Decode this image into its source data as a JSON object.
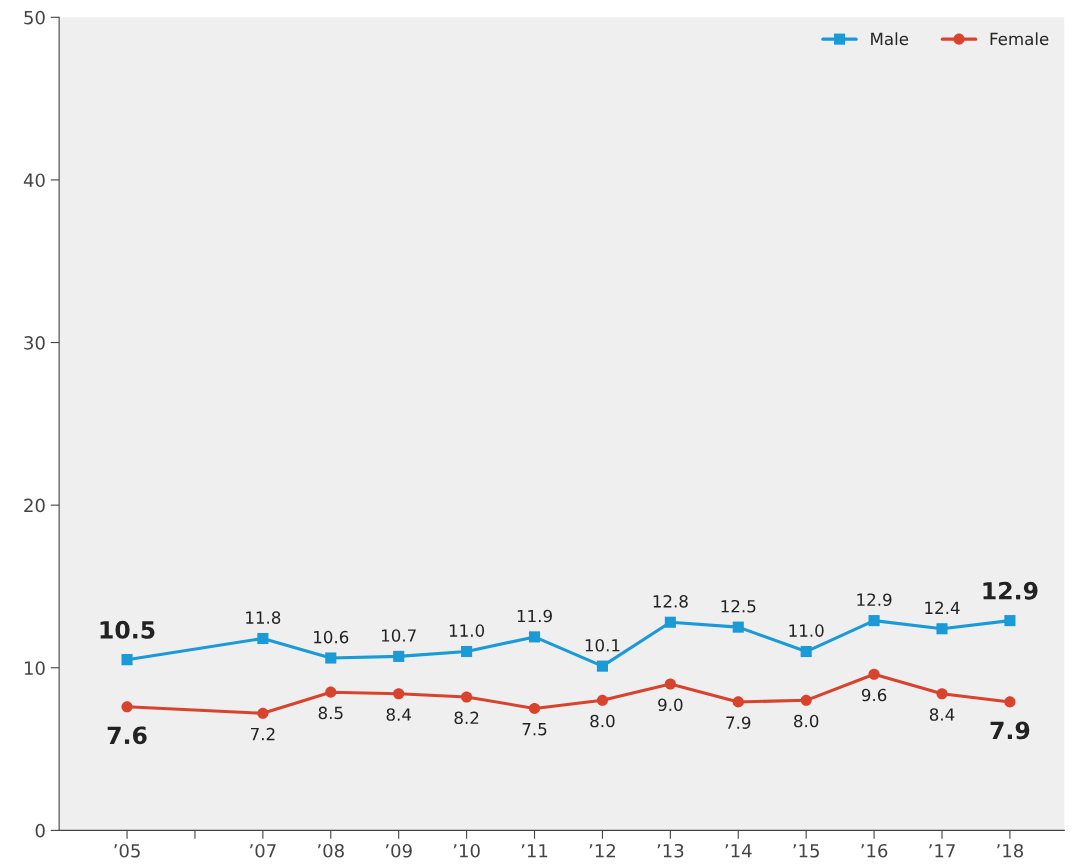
{
  "chart_data": {
    "type": "line",
    "x": [
      2005,
      2007,
      2008,
      2009,
      2010,
      2011,
      2012,
      2013,
      2014,
      2015,
      2016,
      2017,
      2018
    ],
    "series": [
      {
        "name": "Male",
        "color": "#1a9ad6",
        "marker": "square",
        "values": [
          10.5,
          11.8,
          10.6,
          10.7,
          11.0,
          11.9,
          10.1,
          12.8,
          12.5,
          11.0,
          12.9,
          12.4,
          12.9
        ],
        "value_labels": [
          "10.5",
          "11.8",
          "10.6",
          "10.7",
          "11.0",
          "11.9",
          "10.1",
          "12.8",
          "12.5",
          "11.0",
          "12.9",
          "12.4",
          "12.9"
        ]
      },
      {
        "name": "Female",
        "color": "#d8432e",
        "marker": "circle",
        "values": [
          7.6,
          7.2,
          8.5,
          8.4,
          8.2,
          7.5,
          8.0,
          9.0,
          7.9,
          8.0,
          9.6,
          8.4,
          7.9
        ],
        "value_labels": [
          "7.6",
          "7.2",
          "8.5",
          "8.4",
          "8.2",
          "7.5",
          "8.0",
          "9.0",
          "7.9",
          "8.0",
          "9.6",
          "8.4",
          "7.9"
        ]
      }
    ],
    "xlim": [
      2004,
      2018.8
    ],
    "xticks": [
      {
        "value": 2005,
        "label": "’05"
      },
      {
        "value": 2006,
        "label": null
      },
      {
        "value": 2007,
        "label": "’07"
      },
      {
        "value": 2008,
        "label": "’08"
      },
      {
        "value": 2009,
        "label": "’09"
      },
      {
        "value": 2010,
        "label": "’10"
      },
      {
        "value": 2011,
        "label": "’11"
      },
      {
        "value": 2012,
        "label": "’12"
      },
      {
        "value": 2013,
        "label": "’13"
      },
      {
        "value": 2014,
        "label": "’14"
      },
      {
        "value": 2015,
        "label": "’15"
      },
      {
        "value": 2016,
        "label": "’16"
      },
      {
        "value": 2017,
        "label": "’17"
      },
      {
        "value": 2018,
        "label": "’18"
      }
    ],
    "ylim": [
      0,
      50
    ],
    "yticks": [
      0,
      10,
      20,
      30,
      40,
      50
    ],
    "legend": "top right",
    "grid": false,
    "line_style": "solid"
  }
}
